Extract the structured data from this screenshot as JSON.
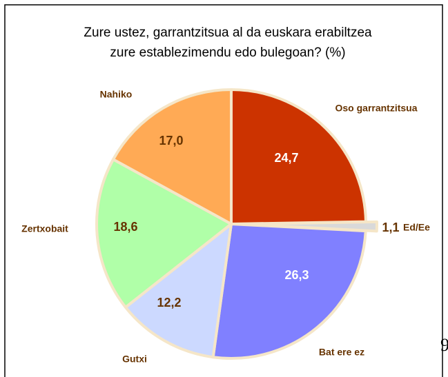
{
  "chart_data": {
    "type": "pie",
    "title": [
      "Zure ustez, garrantzitsua al da euskara erabiltzea",
      "zure establezimendu edo bulegoan? (%)"
    ],
    "categories": [
      "Oso garrantzitsua",
      "Ed/Ee",
      "Bat ere ez",
      "Gutxi",
      "Zertxobait",
      "Nahiko"
    ],
    "values": [
      24.7,
      1.1,
      26.3,
      12.2,
      18.6,
      17.0
    ],
    "value_labels": [
      "24,7",
      "1,1",
      "26,3",
      "12,2",
      "18,6",
      "17,0"
    ],
    "colors": [
      "#cc3300",
      "#d9d9d9",
      "#8080ff",
      "#ccd9ff",
      "#b0ffa8",
      "#ffaa55"
    ],
    "annotation": "9"
  }
}
